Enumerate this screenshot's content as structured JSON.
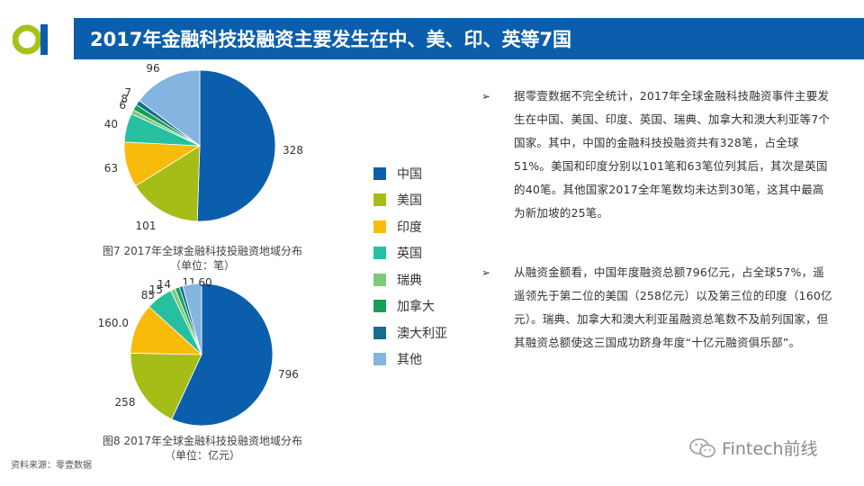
{
  "header": {
    "title": "2017年金融科技投融资主要发生在中、美、印、英等7国",
    "bar_color": "#0b5eab",
    "logo_colors": [
      "#0b5eab",
      "#a6c31a"
    ]
  },
  "colors": {
    "中国": "#0b5eab",
    "美国": "#a6bd17",
    "印度": "#f8bb0a",
    "英国": "#26c0a1",
    "瑞典": "#7ec97a",
    "加拿大": "#169f59",
    "澳大利亚": "#156e8f",
    "其他": "#84b4df"
  },
  "legend": {
    "items": [
      "中国",
      "美国",
      "印度",
      "英国",
      "瑞典",
      "加拿大",
      "澳大利亚",
      "其他"
    ]
  },
  "chart_data": [
    {
      "type": "pie",
      "title": "图7   2017年全球金融科技投融资地域分布",
      "subtitle": "（单位：笔）",
      "categories": [
        "中国",
        "美国",
        "印度",
        "英国",
        "瑞典",
        "加拿大",
        "澳大利亚",
        "其他"
      ],
      "values": [
        328,
        101,
        63,
        40,
        6,
        8,
        7,
        96
      ],
      "labels": [
        "328",
        "101",
        "63",
        "40",
        "6",
        "8",
        "7",
        "96"
      ]
    },
    {
      "type": "pie",
      "title": "图8   2017年全球金融科技投融资地域分布",
      "subtitle": "（单位：亿元）",
      "categories": [
        "中国",
        "美国",
        "印度",
        "英国",
        "瑞典",
        "加拿大",
        "澳大利亚",
        "其他"
      ],
      "values": [
        796,
        258,
        160,
        85,
        15,
        14,
        11,
        60
      ],
      "labels": [
        "796",
        "258",
        "160.0",
        "85",
        "15",
        "14",
        "11",
        "60"
      ]
    }
  ],
  "bullets": [
    "据零壹数据不完全统计，2017年全球金融科技融资事件主要发生在中国、美国、印度、英国、瑞典、加拿大和澳大利亚等7个国家。其中，中国的金融科技投融资共有328笔，占全球51%。美国和印度分别以101笔和63笔位列其后，其次是英国的40笔。其他国家2017全年笔数均未达到30笔，这其中最高为新加坡的25笔。",
    "从融资金额看，中国年度融资总额796亿元，占全球57%，遥遥领先于第二位的美国（258亿元）以及第三位的印度（160亿元）。瑞典、加拿大和澳大利亚虽融资总笔数不及前列国家，但其融资总额使这三国成功跻身年度“十亿元融资俱乐部”。"
  ],
  "bullet_marker": "➢",
  "source": "资料来源：零壹数据",
  "brand": {
    "text": "Fintech前线",
    "icon": "wechat-icon"
  }
}
